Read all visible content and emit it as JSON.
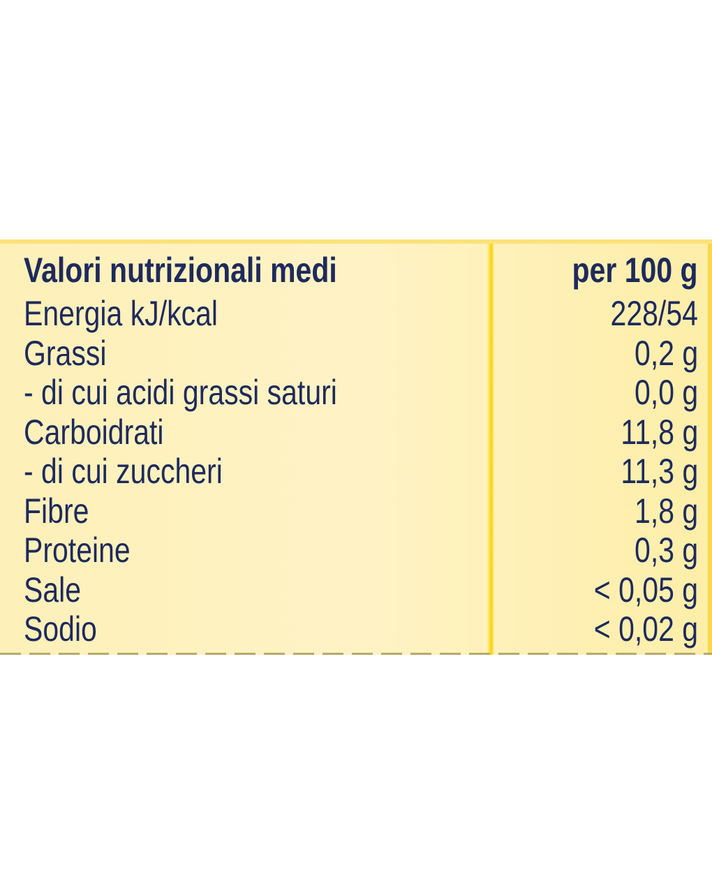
{
  "table": {
    "header": {
      "label": "Valori nutrizionali medi",
      "value": "per 100 g"
    },
    "rows": [
      {
        "label": "Energia kJ/kcal",
        "value": "228/54"
      },
      {
        "label": "Grassi",
        "value": "0,2 g"
      },
      {
        "label": "- di cui acidi grassi saturi",
        "value": "0,0 g"
      },
      {
        "label": "Carboidrati",
        "value": "11,8 g"
      },
      {
        "label": "- di cui zuccheri",
        "value": "11,3 g"
      },
      {
        "label": "Fibre",
        "value": "1,8 g"
      },
      {
        "label": "Proteine",
        "value": "0,3 g"
      },
      {
        "label": "Sale",
        "value": "< 0,05 g"
      },
      {
        "label": "Sodio",
        "value": "< 0,02 g"
      }
    ]
  },
  "colors": {
    "text": "#1e2a5c",
    "background": "#fff3c6",
    "accent": "#f8d200"
  }
}
